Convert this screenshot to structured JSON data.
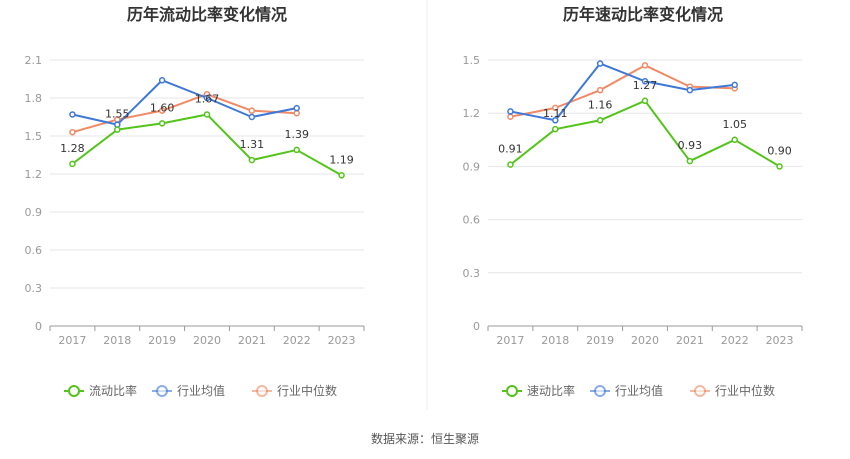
{
  "chart_data": [
    {
      "type": "line",
      "title": "历年流动比率变化情况",
      "categories": [
        "2017",
        "2018",
        "2019",
        "2020",
        "2021",
        "2022",
        "2023"
      ],
      "ylim": [
        0,
        2.1
      ],
      "yticks": [
        "0",
        "0.3",
        "0.6",
        "0.9",
        "1.2",
        "1.5",
        "1.8",
        "2.1"
      ],
      "series": [
        {
          "name": "流动比率",
          "color": "#52c41a",
          "values": [
            1.28,
            1.55,
            1.6,
            1.67,
            1.31,
            1.39,
            1.19
          ],
          "labels": [
            "1.28",
            "1.55",
            "1.60",
            "1.67",
            "1.31",
            "1.39",
            "1.19"
          ]
        },
        {
          "name": "行业均值",
          "color": "#3f78d8",
          "values": [
            1.67,
            1.59,
            1.94,
            1.8,
            1.65,
            1.72,
            null
          ]
        },
        {
          "name": "行业中位数",
          "color": "#f08a66",
          "values": [
            1.53,
            1.63,
            1.7,
            1.83,
            1.7,
            1.68,
            null
          ]
        }
      ]
    },
    {
      "type": "line",
      "title": "历年速动比率变化情况",
      "categories": [
        "2017",
        "2018",
        "2019",
        "2020",
        "2021",
        "2022",
        "2023"
      ],
      "ylim": [
        0,
        1.5
      ],
      "yticks": [
        "0",
        "0.3",
        "0.6",
        "0.9",
        "1.2",
        "1.5"
      ],
      "series": [
        {
          "name": "速动比率",
          "color": "#52c41a",
          "values": [
            0.91,
            1.11,
            1.16,
            1.27,
            0.93,
            1.05,
            0.9
          ],
          "labels": [
            "0.91",
            "1.11",
            "1.16",
            "1.27",
            "0.93",
            "1.05",
            "0.90"
          ]
        },
        {
          "name": "行业均值",
          "color": "#3f78d8",
          "values": [
            1.21,
            1.16,
            1.48,
            1.38,
            1.33,
            1.36,
            null
          ]
        },
        {
          "name": "行业中位数",
          "color": "#f08a66",
          "values": [
            1.18,
            1.23,
            1.33,
            1.47,
            1.35,
            1.34,
            null
          ]
        }
      ]
    }
  ],
  "footer": {
    "source": "数据来源：恒生聚源"
  }
}
